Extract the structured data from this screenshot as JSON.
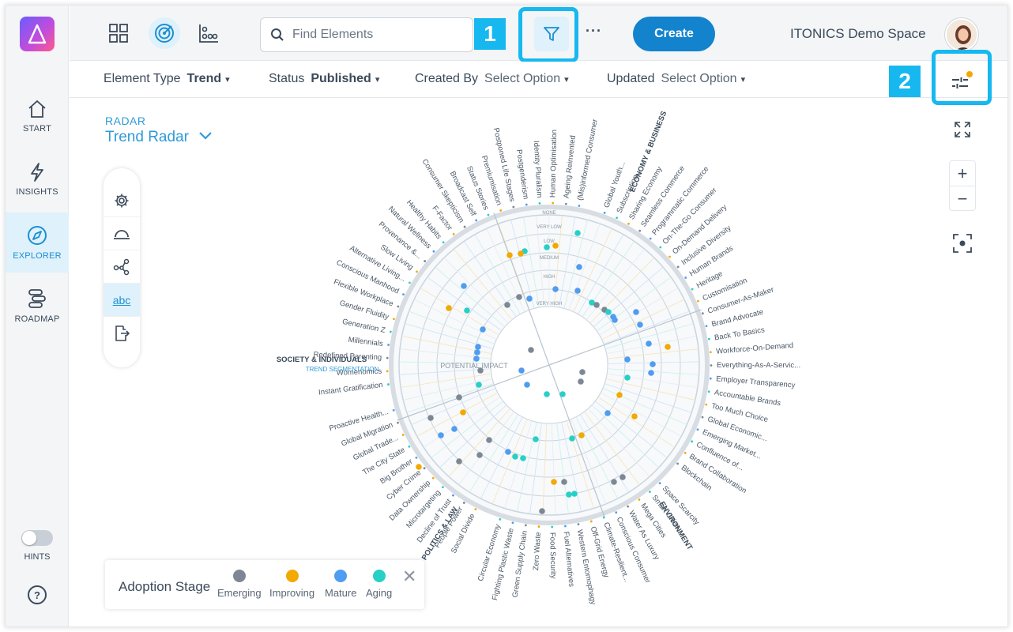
{
  "sidebar": {
    "items": [
      {
        "label": "START",
        "icon": "home-icon"
      },
      {
        "label": "INSIGHTS",
        "icon": "lightning-icon"
      },
      {
        "label": "EXPLORER",
        "icon": "compass-icon",
        "active": true
      },
      {
        "label": "ROADMAP",
        "icon": "roadmap-icon"
      }
    ],
    "hints_label": "HINTS",
    "hints_on": false,
    "help_glyph": "?"
  },
  "topbar": {
    "search_placeholder": "Find Elements",
    "more_label": "···",
    "create_label": "Create",
    "space_name": "ITONICS Demo Space"
  },
  "callouts": {
    "one": "1",
    "two": "2"
  },
  "filters": [
    {
      "label": "Element Type",
      "value": "Trend",
      "placeholder": false
    },
    {
      "label": "Status",
      "value": "Published",
      "placeholder": false
    },
    {
      "label": "Created By",
      "value": "Select Option",
      "placeholder": true
    },
    {
      "label": "Updated",
      "value": "Select Option",
      "placeholder": true
    }
  ],
  "radar": {
    "caption": "RADAR",
    "title": "Trend Radar",
    "center_label": "POTENTIAL IMPACT",
    "rings": [
      "NONE",
      "VERY LOW",
      "LOW",
      "MEDIUM",
      "HIGH",
      "VERY HIGH"
    ],
    "segments": {
      "economy": "ECONOMY & BUSINESS",
      "environment": "ENVIRONMENT",
      "politics": "POLITICS & LAW",
      "society": "SOCIETY & INDIVIDUALS",
      "society_sub": "TREND SEGMENTATION"
    },
    "trends": [
      "Global Youth...",
      "Subscription...",
      "Sharing Economy",
      "Seamless Commerce",
      "Programmatic Commerce",
      "On-The-Go Consumer",
      "On-Demand Delivery",
      "Inclusive Diversity",
      "Human Brands",
      "Heritage",
      "Customisation",
      "Consumer-As-Maker",
      "Brand Advocate",
      "Back To Basics",
      "Workforce-On-Demand",
      "Everything-As-A-Servic...",
      "Employer Transparency",
      "Accountable Brands",
      "Too Much Choice",
      "Global Economic...",
      "Emerging Market...",
      "Confluence of...",
      "Brand Collaboration",
      "Blockchain",
      "Space Scarcity",
      "Smart Cities",
      "Mega Cities",
      "Water As Luxury",
      "Conscious Consumer",
      "Climate-Resilient...",
      "Off-Grid Energy",
      "Western Entomophagy",
      "Fuel Alternatives",
      "Food Security",
      "Zero Waste",
      "Green Supply Chain",
      "Fighting Plastic Waste",
      "Circular Economy",
      "Social Divide",
      "People Power",
      "Decline of Trust",
      "Microtargeting",
      "Data Ownership",
      "Cyber Crime",
      "Big Brother",
      "The City State",
      "Global Trade...",
      "Global Migration",
      "Proactive Health...",
      "Instant Gratification",
      "Womenomics",
      "Redefined Parenting",
      "Millennials",
      "Generation Z",
      "Gender Fluidity",
      "Flexible Workplace",
      "Conscious Manhood",
      "Alternative Living...",
      "Slow Living",
      "Provenance &...",
      "Natural Wellness",
      "Healthy Habits",
      "F-Factor",
      "Consumer Skepticism",
      "Broadcast Self",
      "Status Stories",
      "Premiumisation",
      "Postponed Life Stages",
      "Postgenderism",
      "Identity Pluralism",
      "Human Optimisation",
      "Ageing Reinvented",
      "(Mis)informed Consumer"
    ]
  },
  "tools": [
    "gear-icon",
    "arc-icon",
    "network-icon",
    "abc",
    "export-icon"
  ],
  "legend": {
    "title": "Adoption Stage",
    "items": [
      {
        "label": "Emerging",
        "color": "#7d8894"
      },
      {
        "label": "Improving",
        "color": "#f2a900"
      },
      {
        "label": "Mature",
        "color": "#4f9cf0"
      },
      {
        "label": "Aging",
        "color": "#26d0c7"
      }
    ]
  },
  "colors": {
    "accent": "#1283cc",
    "callout": "#16b8ef",
    "active_bg": "#dff1fb"
  }
}
